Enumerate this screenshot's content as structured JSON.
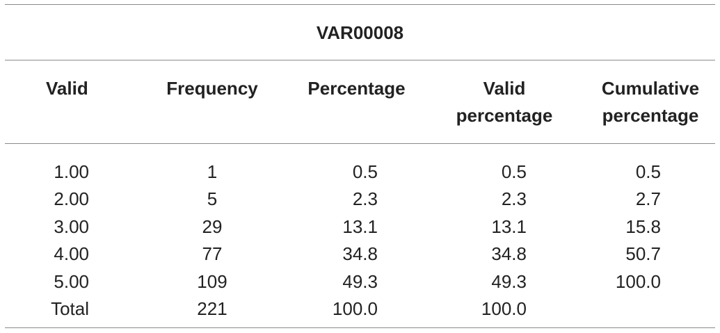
{
  "table": {
    "title": "VAR00008",
    "headers": [
      "Valid",
      "Frequency",
      "Percentage",
      "Valid percentage",
      "Cumulative percentage"
    ],
    "rows": [
      [
        "1.00",
        "1",
        "0.5",
        "0.5",
        "0.5"
      ],
      [
        "2.00",
        "5",
        "2.3",
        "2.3",
        "2.7"
      ],
      [
        "3.00",
        "29",
        "13.1",
        "13.1",
        "15.8"
      ],
      [
        "4.00",
        "77",
        "34.8",
        "34.8",
        "50.7"
      ],
      [
        "5.00",
        "109",
        "49.3",
        "49.3",
        "100.0"
      ],
      [
        "Total",
        "221",
        "100.0",
        "100.0"
      ]
    ]
  }
}
